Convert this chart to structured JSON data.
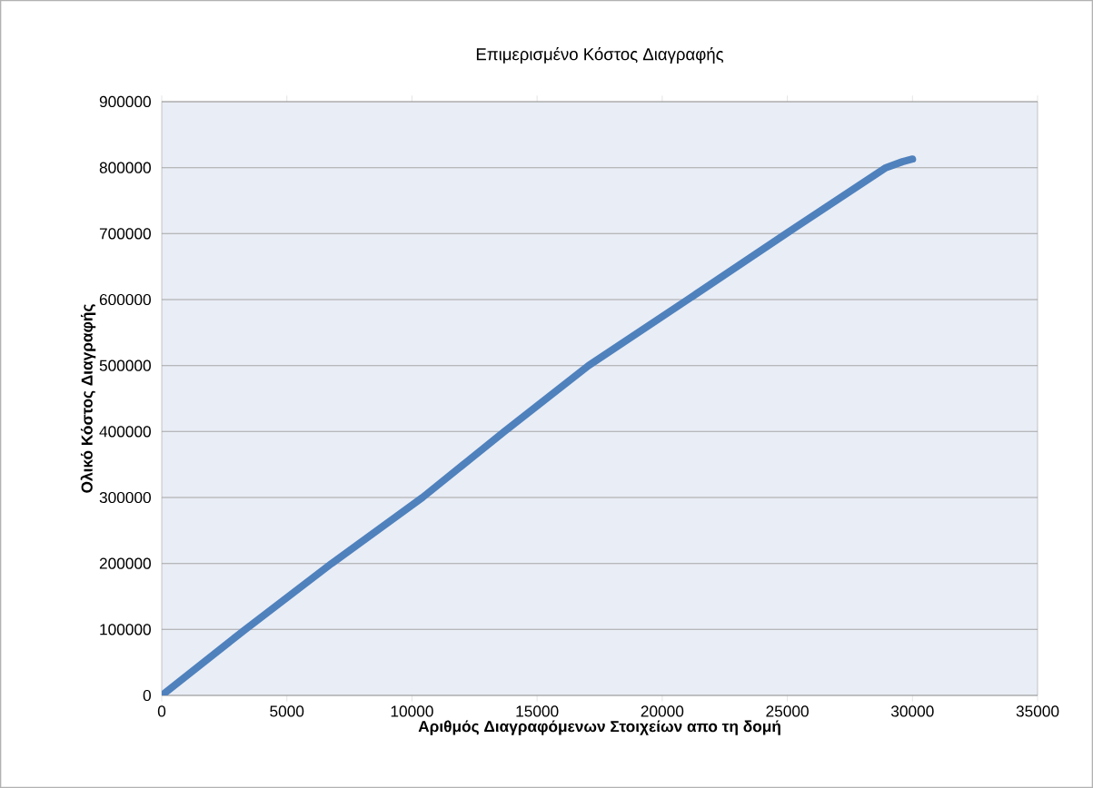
{
  "chart_data": {
    "type": "line",
    "title": "Επιμερισμένο Κόστος Διαγραφής",
    "xlabel": "Αριθμός Διαγραφόμενων Στοιχείων απο τη δομή",
    "ylabel": "Ολικό Κόστος Διαγραφής",
    "x": [
      0,
      3340,
      6790,
      10420,
      13690,
      17060,
      21020,
      24950,
      28940,
      29600,
      30000
    ],
    "series": [
      {
        "color": "#4f81bd",
        "values": [
          0,
          100000,
          200000,
          300000,
          400000,
          500000,
          600000,
          700000,
          800000,
          809000,
          813000
        ]
      }
    ],
    "xlim": [
      0,
      35000
    ],
    "xticks": [
      0,
      5000,
      10000,
      15000,
      20000,
      25000,
      30000,
      35000
    ],
    "ylim": [
      0,
      900000
    ],
    "yticks": [
      0,
      100000,
      200000,
      300000,
      400000,
      500000,
      600000,
      700000,
      800000,
      900000
    ],
    "grid": "y",
    "marker": "none",
    "line_style": "solid"
  }
}
